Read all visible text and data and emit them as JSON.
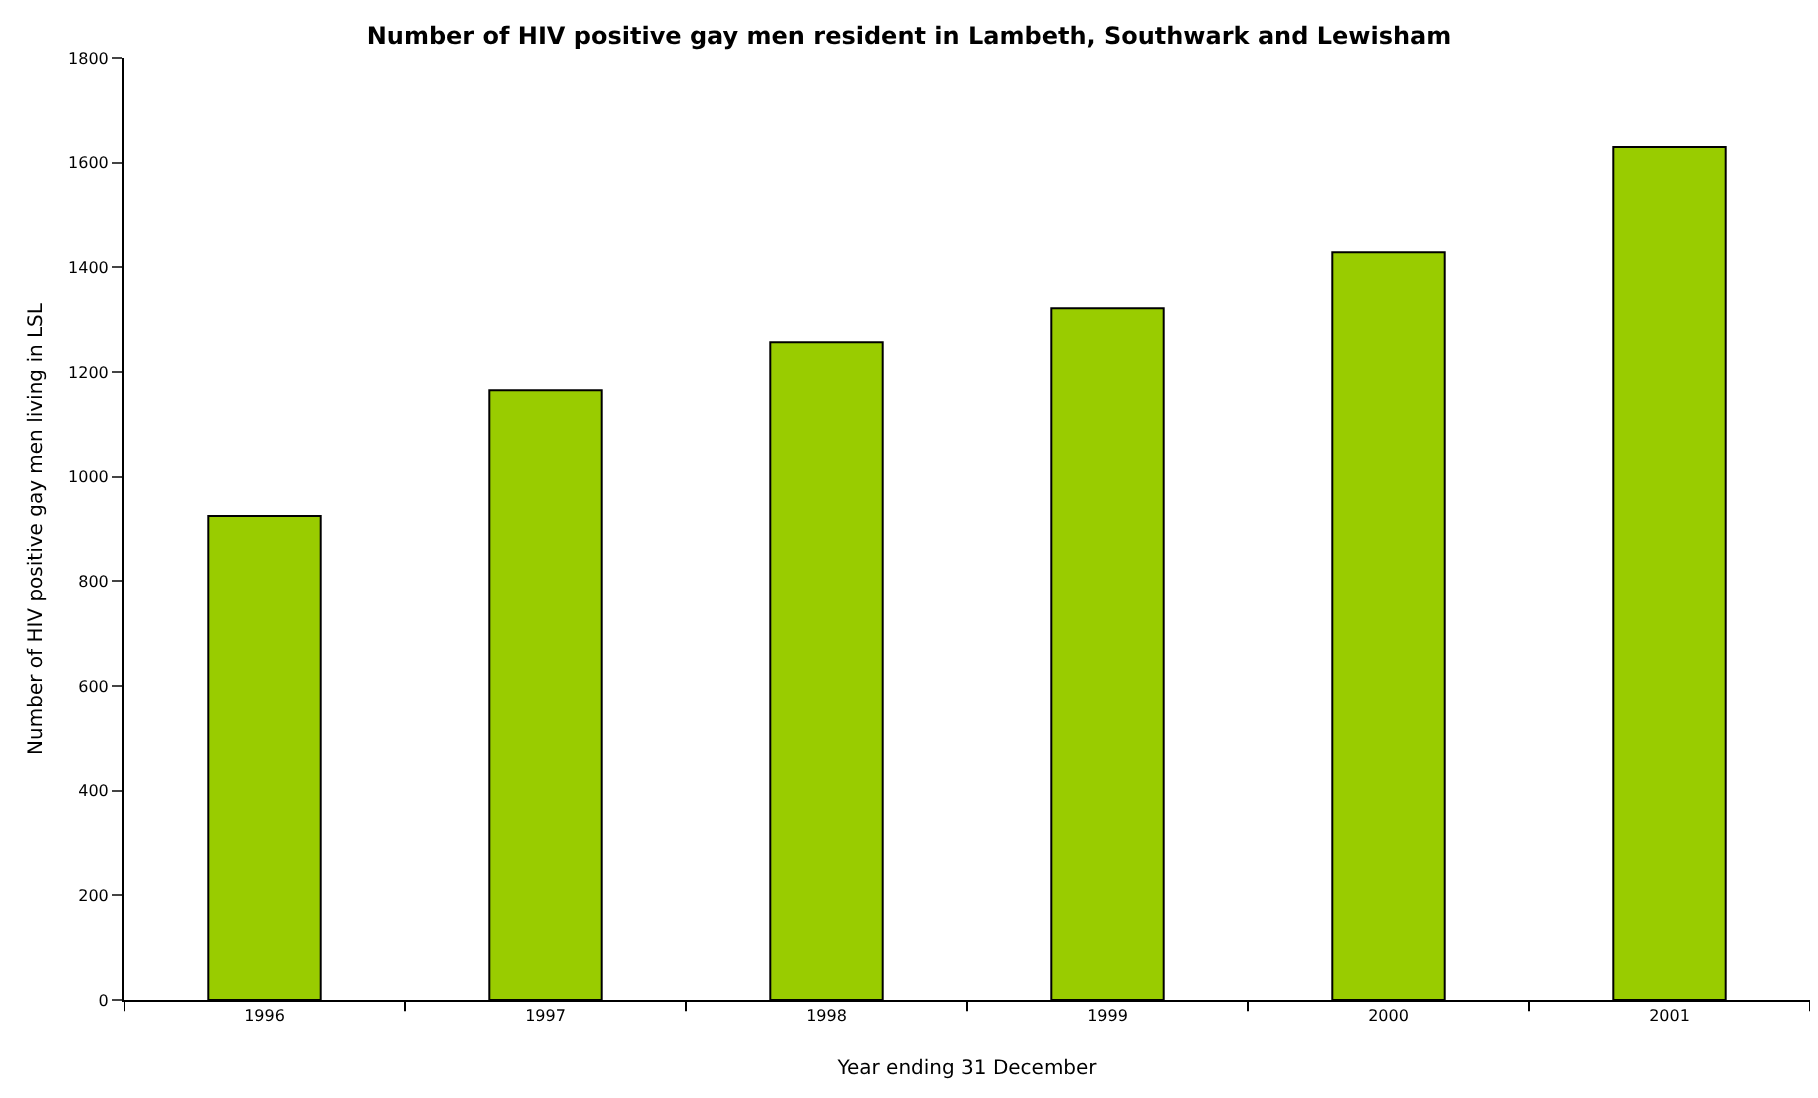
{
  "chart_data": {
    "type": "bar",
    "title": "Number of HIV positive gay men resident in Lambeth, Southwark and Lewisham",
    "xlabel": "Year ending 31 December",
    "ylabel": "Number of HIV positive gay men living in LSL",
    "categories": [
      "1996",
      "1997",
      "1998",
      "1999",
      "2000",
      "2001"
    ],
    "values": [
      925,
      1165,
      1257,
      1322,
      1429,
      1630
    ],
    "color": "#99cc00",
    "ylim": [
      0,
      1800
    ],
    "yticks": [
      0,
      200,
      400,
      600,
      800,
      1000,
      1200,
      1400,
      1600,
      1800
    ]
  }
}
